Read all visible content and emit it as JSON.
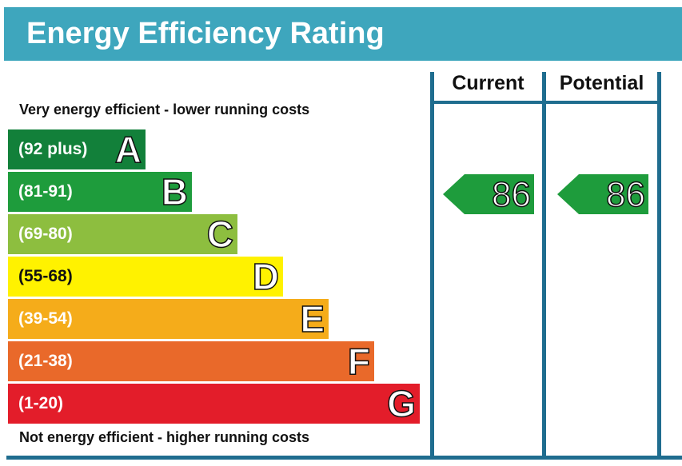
{
  "header": {
    "title": "Energy Efficiency Rating"
  },
  "captions": {
    "top": "Very energy efficient - lower running costs",
    "bottom": "Not energy efficient - higher running costs"
  },
  "columns": {
    "current": "Current",
    "potential": "Potential"
  },
  "chart_data": {
    "type": "bar",
    "title": "Energy Efficiency Rating",
    "categories": [
      "A",
      "B",
      "C",
      "D",
      "E",
      "F",
      "G"
    ],
    "bands": [
      {
        "letter": "A",
        "range": "(92 plus)",
        "color": "#12803a"
      },
      {
        "letter": "B",
        "range": "(81-91)",
        "color": "#1e9c3c"
      },
      {
        "letter": "C",
        "range": "(69-80)",
        "color": "#8dbe3f"
      },
      {
        "letter": "D",
        "range": "(55-68)",
        "color": "#fff200"
      },
      {
        "letter": "E",
        "range": "(39-54)",
        "color": "#f5ac1a"
      },
      {
        "letter": "F",
        "range": "(21-38)",
        "color": "#e9692a"
      },
      {
        "letter": "G",
        "range": "(1-20)",
        "color": "#e31d2a"
      }
    ],
    "series": [
      {
        "name": "Current",
        "value": "86",
        "band": "B",
        "color": "#1e9c3c"
      },
      {
        "name": "Potential",
        "value": "86",
        "band": "B",
        "color": "#1e9c3c"
      }
    ]
  },
  "colors": {
    "header": "#3ea6bd",
    "frame": "#1f6d8f"
  }
}
